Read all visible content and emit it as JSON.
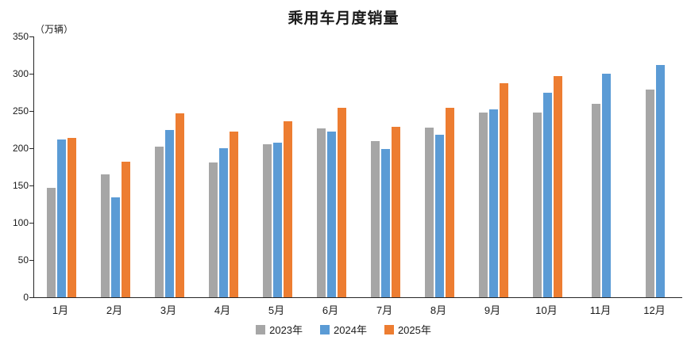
{
  "chart_data": {
    "type": "bar",
    "title": "乘用车月度销量",
    "ylabel": "（万辆）",
    "xlabel": "",
    "categories": [
      "1月",
      "2月",
      "3月",
      "4月",
      "5月",
      "6月",
      "7月",
      "8月",
      "9月",
      "10月",
      "11月",
      "12月"
    ],
    "series": [
      {
        "name": "2023年",
        "color": "#a6a6a6",
        "values": [
          147,
          165,
          202,
          181,
          205,
          227,
          210,
          228,
          248,
          248,
          260,
          279
        ]
      },
      {
        "name": "2024年",
        "color": "#5b9bd5",
        "values": [
          212,
          134,
          224,
          200,
          207,
          222,
          199,
          218,
          252,
          275,
          300,
          312
        ]
      },
      {
        "name": "2025年",
        "color": "#ed7d31",
        "values": [
          214,
          182,
          247,
          222,
          236,
          254,
          229,
          254,
          287,
          297,
          null,
          null
        ]
      }
    ],
    "ylim": [
      0,
      350
    ],
    "ytick_interval": 50,
    "grid": false,
    "legend_position": "bottom"
  }
}
